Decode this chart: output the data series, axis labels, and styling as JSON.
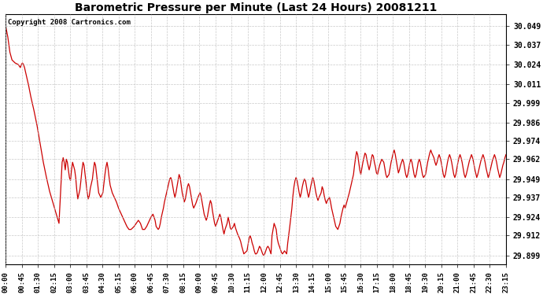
{
  "title": "Barometric Pressure per Minute (Last 24 Hours) 20081211",
  "copyright_text": "Copyright 2008 Cartronics.com",
  "line_color": "#cc0000",
  "background_color": "#ffffff",
  "grid_color": "#bbbbbb",
  "yticks": [
    29.899,
    29.912,
    29.924,
    29.937,
    29.949,
    29.962,
    29.974,
    29.986,
    29.999,
    30.011,
    30.024,
    30.037,
    30.049
  ],
  "ylim": [
    29.893,
    30.057
  ],
  "xtick_labels": [
    "00:00",
    "00:45",
    "01:30",
    "02:15",
    "03:00",
    "03:45",
    "04:30",
    "05:15",
    "06:00",
    "06:45",
    "07:30",
    "08:15",
    "09:00",
    "09:45",
    "10:30",
    "11:15",
    "12:00",
    "12:45",
    "13:30",
    "14:15",
    "15:00",
    "15:45",
    "16:30",
    "17:15",
    "18:00",
    "18:45",
    "19:30",
    "20:15",
    "21:00",
    "21:45",
    "22:30",
    "23:15"
  ],
  "data_points": [
    [
      0,
      30.049
    ],
    [
      10,
      30.042
    ],
    [
      20,
      30.032
    ],
    [
      30,
      30.027
    ],
    [
      45,
      30.025
    ],
    [
      60,
      30.024
    ],
    [
      70,
      30.022
    ],
    [
      75,
      30.024
    ],
    [
      80,
      30.025
    ],
    [
      85,
      30.024
    ],
    [
      90,
      30.022
    ],
    [
      100,
      30.016
    ],
    [
      110,
      30.01
    ],
    [
      120,
      30.003
    ],
    [
      135,
      29.994
    ],
    [
      150,
      29.984
    ],
    [
      165,
      29.972
    ],
    [
      180,
      29.96
    ],
    [
      195,
      29.95
    ],
    [
      210,
      29.941
    ],
    [
      225,
      29.934
    ],
    [
      240,
      29.927
    ],
    [
      255,
      29.92
    ],
    [
      270,
      29.96
    ],
    [
      275,
      29.963
    ],
    [
      280,
      29.96
    ],
    [
      285,
      29.955
    ],
    [
      290,
      29.962
    ],
    [
      295,
      29.96
    ],
    [
      300,
      29.955
    ],
    [
      305,
      29.95
    ],
    [
      310,
      29.948
    ],
    [
      315,
      29.955
    ],
    [
      320,
      29.96
    ],
    [
      330,
      29.955
    ],
    [
      335,
      29.95
    ],
    [
      340,
      29.942
    ],
    [
      345,
      29.936
    ],
    [
      355,
      29.942
    ],
    [
      360,
      29.948
    ],
    [
      365,
      29.955
    ],
    [
      370,
      29.96
    ],
    [
      375,
      29.958
    ],
    [
      380,
      29.952
    ],
    [
      385,
      29.946
    ],
    [
      390,
      29.94
    ],
    [
      395,
      29.936
    ],
    [
      400,
      29.938
    ],
    [
      405,
      29.943
    ],
    [
      415,
      29.949
    ],
    [
      420,
      29.955
    ],
    [
      425,
      29.96
    ],
    [
      430,
      29.958
    ],
    [
      435,
      29.952
    ],
    [
      440,
      29.946
    ],
    [
      445,
      29.94
    ],
    [
      455,
      29.937
    ],
    [
      465,
      29.94
    ],
    [
      470,
      29.946
    ],
    [
      475,
      29.952
    ],
    [
      480,
      29.957
    ],
    [
      485,
      29.96
    ],
    [
      490,
      29.956
    ],
    [
      495,
      29.95
    ],
    [
      500,
      29.945
    ],
    [
      510,
      29.94
    ],
    [
      520,
      29.937
    ],
    [
      530,
      29.934
    ],
    [
      540,
      29.93
    ],
    [
      550,
      29.927
    ],
    [
      560,
      29.924
    ],
    [
      570,
      29.921
    ],
    [
      580,
      29.918
    ],
    [
      590,
      29.916
    ],
    [
      600,
      29.916
    ],
    [
      615,
      29.918
    ],
    [
      625,
      29.92
    ],
    [
      635,
      29.922
    ],
    [
      645,
      29.92
    ],
    [
      655,
      29.916
    ],
    [
      665,
      29.916
    ],
    [
      675,
      29.918
    ],
    [
      685,
      29.921
    ],
    [
      695,
      29.924
    ],
    [
      705,
      29.926
    ],
    [
      715,
      29.922
    ],
    [
      720,
      29.918
    ],
    [
      730,
      29.916
    ],
    [
      735,
      29.917
    ],
    [
      740,
      29.92
    ],
    [
      745,
      29.924
    ],
    [
      750,
      29.927
    ],
    [
      755,
      29.93
    ],
    [
      760,
      29.934
    ],
    [
      765,
      29.937
    ],
    [
      770,
      29.94
    ],
    [
      775,
      29.943
    ],
    [
      780,
      29.946
    ],
    [
      785,
      29.949
    ],
    [
      790,
      29.95
    ],
    [
      795,
      29.948
    ],
    [
      800,
      29.944
    ],
    [
      805,
      29.94
    ],
    [
      810,
      29.937
    ],
    [
      815,
      29.94
    ],
    [
      820,
      29.944
    ],
    [
      825,
      29.948
    ],
    [
      830,
      29.952
    ],
    [
      835,
      29.95
    ],
    [
      840,
      29.945
    ],
    [
      845,
      29.94
    ],
    [
      850,
      29.937
    ],
    [
      855,
      29.934
    ],
    [
      860,
      29.936
    ],
    [
      865,
      29.94
    ],
    [
      870,
      29.944
    ],
    [
      875,
      29.946
    ],
    [
      880,
      29.944
    ],
    [
      885,
      29.94
    ],
    [
      890,
      29.936
    ],
    [
      895,
      29.932
    ],
    [
      900,
      29.93
    ],
    [
      910,
      29.933
    ],
    [
      920,
      29.937
    ],
    [
      930,
      29.94
    ],
    [
      935,
      29.938
    ],
    [
      940,
      29.934
    ],
    [
      945,
      29.93
    ],
    [
      950,
      29.926
    ],
    [
      960,
      29.922
    ],
    [
      965,
      29.924
    ],
    [
      970,
      29.928
    ],
    [
      975,
      29.932
    ],
    [
      980,
      29.935
    ],
    [
      985,
      29.933
    ],
    [
      990,
      29.928
    ],
    [
      995,
      29.924
    ],
    [
      1000,
      29.92
    ],
    [
      1005,
      29.918
    ],
    [
      1010,
      29.92
    ],
    [
      1020,
      29.924
    ],
    [
      1025,
      29.926
    ],
    [
      1030,
      29.924
    ],
    [
      1035,
      29.92
    ],
    [
      1040,
      29.916
    ],
    [
      1045,
      29.913
    ],
    [
      1050,
      29.916
    ],
    [
      1060,
      29.92
    ],
    [
      1065,
      29.924
    ],
    [
      1070,
      29.921
    ],
    [
      1075,
      29.917
    ],
    [
      1080,
      29.916
    ],
    [
      1090,
      29.918
    ],
    [
      1095,
      29.92
    ],
    [
      1100,
      29.917
    ],
    [
      1110,
      29.913
    ],
    [
      1120,
      29.91
    ],
    [
      1125,
      29.908
    ],
    [
      1130,
      29.905
    ],
    [
      1140,
      29.9
    ],
    [
      1155,
      29.902
    ],
    [
      1160,
      29.906
    ],
    [
      1165,
      29.91
    ],
    [
      1170,
      29.912
    ],
    [
      1175,
      29.91
    ],
    [
      1180,
      29.907
    ],
    [
      1185,
      29.905
    ],
    [
      1190,
      29.902
    ],
    [
      1195,
      29.9
    ],
    [
      1200,
      29.9
    ],
    [
      1205,
      29.901
    ],
    [
      1210,
      29.903
    ],
    [
      1215,
      29.905
    ],
    [
      1220,
      29.904
    ],
    [
      1225,
      29.902
    ],
    [
      1230,
      29.9
    ],
    [
      1235,
      29.899
    ],
    [
      1240,
      29.9
    ],
    [
      1245,
      29.902
    ],
    [
      1250,
      29.904
    ],
    [
      1255,
      29.905
    ],
    [
      1260,
      29.904
    ],
    [
      1265,
      29.902
    ],
    [
      1270,
      29.9
    ],
    [
      1275,
      29.912
    ],
    [
      1285,
      29.92
    ],
    [
      1295,
      29.916
    ],
    [
      1300,
      29.91
    ],
    [
      1305,
      29.907
    ],
    [
      1310,
      29.905
    ],
    [
      1315,
      29.903
    ],
    [
      1320,
      29.901
    ],
    [
      1325,
      29.9
    ],
    [
      1330,
      29.901
    ],
    [
      1335,
      29.902
    ],
    [
      1340,
      29.901
    ],
    [
      1345,
      29.9
    ],
    [
      1350,
      29.907
    ],
    [
      1360,
      29.918
    ],
    [
      1365,
      29.924
    ],
    [
      1370,
      29.93
    ],
    [
      1375,
      29.938
    ],
    [
      1380,
      29.944
    ],
    [
      1385,
      29.948
    ],
    [
      1390,
      29.95
    ],
    [
      1395,
      29.948
    ],
    [
      1400,
      29.944
    ],
    [
      1405,
      29.94
    ],
    [
      1410,
      29.937
    ],
    [
      1415,
      29.94
    ],
    [
      1420,
      29.944
    ],
    [
      1425,
      29.947
    ],
    [
      1430,
      29.949
    ],
    [
      1435,
      29.948
    ],
    [
      1440,
      29.944
    ],
    [
      1445,
      29.94
    ],
    [
      1450,
      29.937
    ],
    [
      1455,
      29.94
    ],
    [
      1460,
      29.944
    ],
    [
      1465,
      29.947
    ],
    [
      1470,
      29.95
    ],
    [
      1475,
      29.948
    ],
    [
      1480,
      29.944
    ],
    [
      1485,
      29.94
    ],
    [
      1490,
      29.937
    ],
    [
      1495,
      29.935
    ],
    [
      1500,
      29.937
    ],
    [
      1510,
      29.94
    ],
    [
      1515,
      29.944
    ],
    [
      1520,
      29.942
    ],
    [
      1525,
      29.938
    ],
    [
      1530,
      29.935
    ],
    [
      1535,
      29.933
    ],
    [
      1540,
      29.935
    ],
    [
      1550,
      29.937
    ],
    [
      1555,
      29.934
    ],
    [
      1560,
      29.93
    ],
    [
      1565,
      29.927
    ],
    [
      1570,
      29.924
    ],
    [
      1575,
      29.921
    ],
    [
      1580,
      29.918
    ],
    [
      1590,
      29.916
    ],
    [
      1600,
      29.92
    ],
    [
      1605,
      29.924
    ],
    [
      1610,
      29.927
    ],
    [
      1615,
      29.93
    ],
    [
      1620,
      29.932
    ],
    [
      1625,
      29.93
    ],
    [
      1635,
      29.935
    ],
    [
      1645,
      29.94
    ],
    [
      1655,
      29.946
    ],
    [
      1665,
      29.952
    ],
    [
      1670,
      29.958
    ],
    [
      1675,
      29.963
    ],
    [
      1680,
      29.967
    ],
    [
      1685,
      29.965
    ],
    [
      1690,
      29.96
    ],
    [
      1695,
      29.955
    ],
    [
      1700,
      29.952
    ],
    [
      1705,
      29.956
    ],
    [
      1710,
      29.96
    ],
    [
      1715,
      29.963
    ],
    [
      1720,
      29.966
    ],
    [
      1725,
      29.965
    ],
    [
      1730,
      29.961
    ],
    [
      1735,
      29.958
    ],
    [
      1740,
      29.955
    ],
    [
      1745,
      29.958
    ],
    [
      1750,
      29.962
    ],
    [
      1755,
      29.965
    ],
    [
      1760,
      29.964
    ],
    [
      1765,
      29.96
    ],
    [
      1770,
      29.957
    ],
    [
      1775,
      29.953
    ],
    [
      1780,
      29.952
    ],
    [
      1785,
      29.955
    ],
    [
      1790,
      29.958
    ],
    [
      1795,
      29.96
    ],
    [
      1800,
      29.962
    ],
    [
      1810,
      29.96
    ],
    [
      1815,
      29.956
    ],
    [
      1820,
      29.952
    ],
    [
      1825,
      29.95
    ],
    [
      1835,
      29.952
    ],
    [
      1840,
      29.956
    ],
    [
      1845,
      29.96
    ],
    [
      1850,
      29.963
    ],
    [
      1855,
      29.966
    ],
    [
      1860,
      29.968
    ],
    [
      1865,
      29.965
    ],
    [
      1870,
      29.961
    ],
    [
      1875,
      29.957
    ],
    [
      1880,
      29.953
    ],
    [
      1885,
      29.955
    ],
    [
      1890,
      29.958
    ],
    [
      1895,
      29.96
    ],
    [
      1900,
      29.962
    ],
    [
      1905,
      29.96
    ],
    [
      1910,
      29.956
    ],
    [
      1915,
      29.952
    ],
    [
      1920,
      29.95
    ],
    [
      1925,
      29.952
    ],
    [
      1930,
      29.956
    ],
    [
      1935,
      29.96
    ],
    [
      1940,
      29.962
    ],
    [
      1945,
      29.96
    ],
    [
      1950,
      29.956
    ],
    [
      1955,
      29.952
    ],
    [
      1960,
      29.95
    ],
    [
      1965,
      29.952
    ],
    [
      1970,
      29.956
    ],
    [
      1975,
      29.96
    ],
    [
      1980,
      29.962
    ],
    [
      1985,
      29.96
    ],
    [
      1990,
      29.956
    ],
    [
      1995,
      29.952
    ],
    [
      2000,
      29.95
    ],
    [
      2010,
      29.952
    ],
    [
      2015,
      29.956
    ],
    [
      2020,
      29.96
    ],
    [
      2025,
      29.963
    ],
    [
      2030,
      29.966
    ],
    [
      2035,
      29.968
    ],
    [
      2040,
      29.966
    ],
    [
      2050,
      29.963
    ],
    [
      2055,
      29.96
    ],
    [
      2060,
      29.958
    ],
    [
      2065,
      29.96
    ],
    [
      2070,
      29.963
    ],
    [
      2075,
      29.965
    ],
    [
      2080,
      29.963
    ],
    [
      2085,
      29.96
    ],
    [
      2090,
      29.956
    ],
    [
      2095,
      29.952
    ],
    [
      2100,
      29.95
    ],
    [
      2105,
      29.952
    ],
    [
      2110,
      29.956
    ],
    [
      2115,
      29.96
    ],
    [
      2120,
      29.963
    ],
    [
      2125,
      29.965
    ],
    [
      2130,
      29.963
    ],
    [
      2135,
      29.96
    ],
    [
      2140,
      29.956
    ],
    [
      2145,
      29.952
    ],
    [
      2150,
      29.95
    ],
    [
      2155,
      29.952
    ],
    [
      2160,
      29.956
    ],
    [
      2165,
      29.96
    ],
    [
      2170,
      29.963
    ],
    [
      2175,
      29.965
    ],
    [
      2180,
      29.963
    ],
    [
      2185,
      29.96
    ],
    [
      2190,
      29.956
    ],
    [
      2195,
      29.952
    ],
    [
      2200,
      29.95
    ],
    [
      2205,
      29.952
    ],
    [
      2210,
      29.955
    ],
    [
      2215,
      29.958
    ],
    [
      2220,
      29.961
    ],
    [
      2225,
      29.963
    ],
    [
      2230,
      29.965
    ],
    [
      2235,
      29.963
    ],
    [
      2240,
      29.96
    ],
    [
      2245,
      29.956
    ],
    [
      2250,
      29.953
    ],
    [
      2255,
      29.95
    ],
    [
      2260,
      29.952
    ],
    [
      2265,
      29.955
    ],
    [
      2270,
      29.958
    ],
    [
      2275,
      29.961
    ],
    [
      2280,
      29.963
    ],
    [
      2285,
      29.965
    ],
    [
      2290,
      29.963
    ],
    [
      2295,
      29.96
    ],
    [
      2300,
      29.956
    ],
    [
      2305,
      29.953
    ],
    [
      2310,
      29.95
    ],
    [
      2315,
      29.952
    ],
    [
      2320,
      29.955
    ],
    [
      2325,
      29.958
    ],
    [
      2330,
      29.961
    ],
    [
      2335,
      29.963
    ],
    [
      2340,
      29.965
    ],
    [
      2345,
      29.963
    ],
    [
      2350,
      29.96
    ],
    [
      2355,
      29.956
    ],
    [
      2360,
      29.953
    ],
    [
      2365,
      29.95
    ],
    [
      2370,
      29.952
    ],
    [
      2375,
      29.955
    ],
    [
      2380,
      29.958
    ],
    [
      2385,
      29.96
    ],
    [
      2390,
      29.963
    ],
    [
      2395,
      29.965
    ]
  ]
}
